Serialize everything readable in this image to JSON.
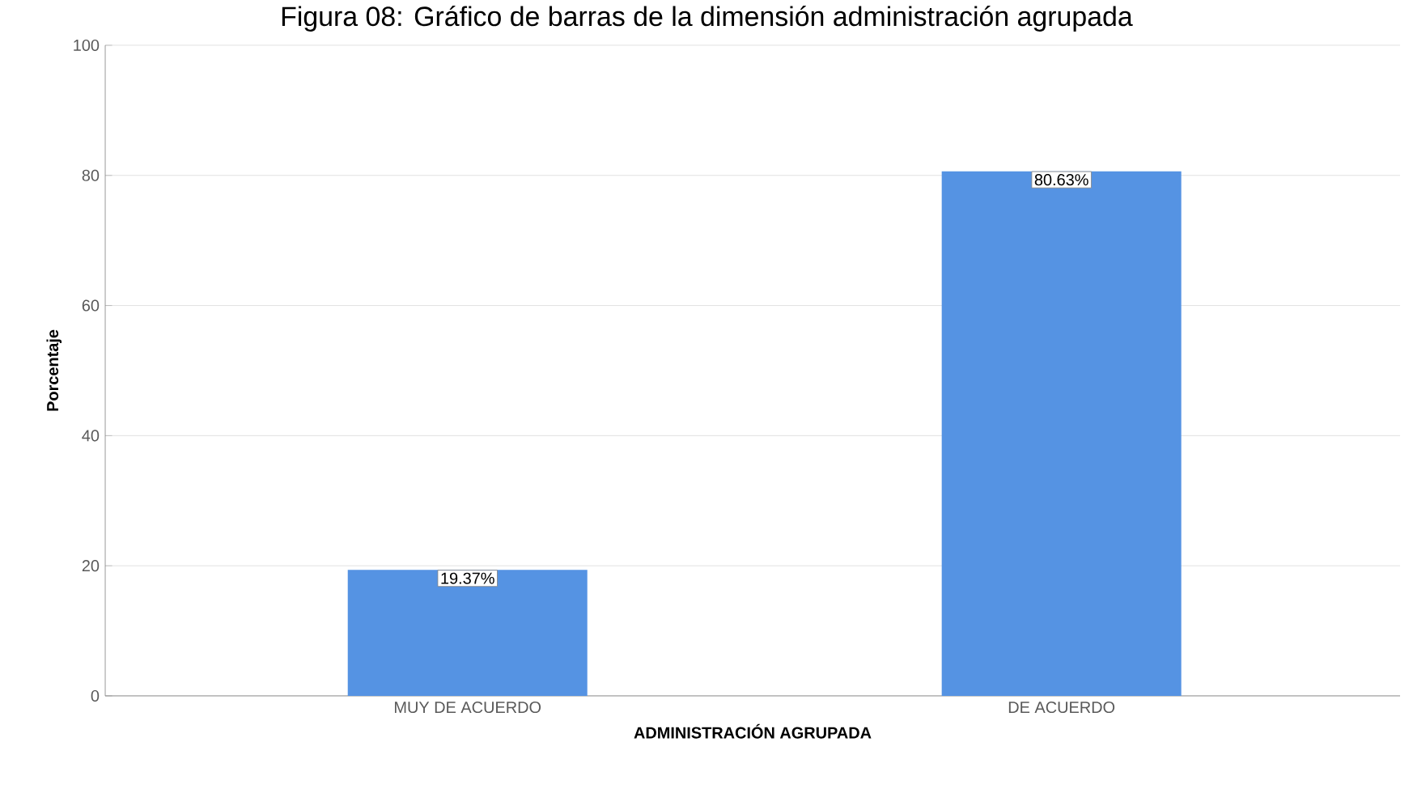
{
  "chart_data": {
    "type": "bar",
    "title": "Figura 08: Gráfico de barras de la dimensión administración agrupada",
    "xlabel": "ADMINISTRACIÓN AGRUPADA",
    "ylabel": "Porcentaje",
    "categories": [
      "MUY DE ACUERDO",
      "DE ACUERDO"
    ],
    "values": [
      19.37,
      80.63
    ],
    "value_labels": [
      "19.37%",
      "80.63%"
    ],
    "color": "#5593e3",
    "ylim": [
      0,
      100
    ],
    "yticks": [
      0,
      20,
      40,
      60,
      80,
      100
    ],
    "grid": "y"
  }
}
